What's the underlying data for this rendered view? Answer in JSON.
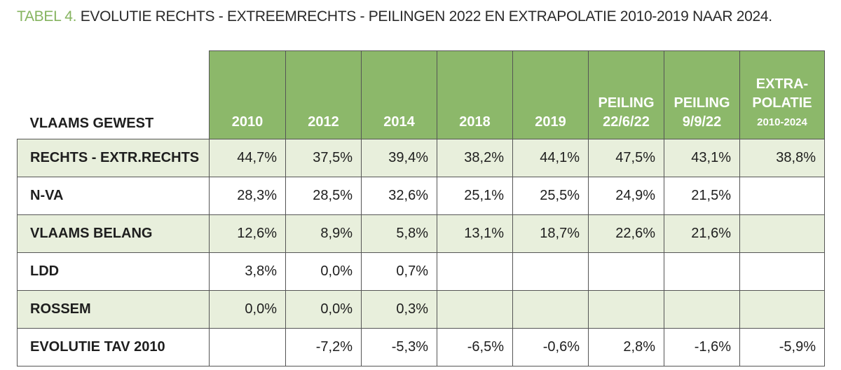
{
  "header": {
    "prefix": "TABEL 4.",
    "title": "EVOLUTIE RECHTS - EXTREEMRECHTS - PEILINGEN 2022 EN EXTRAPOLATIE 2010-2019 NAAR 2024."
  },
  "table": {
    "corner": "VLAAMS GEWEST",
    "columns": [
      [
        "2010"
      ],
      [
        "2012"
      ],
      [
        "2014"
      ],
      [
        "2018"
      ],
      [
        "2019"
      ],
      [
        "PEILING",
        "22/6/22"
      ],
      [
        "PEILING",
        "9/9/22"
      ],
      [
        "EXTRA-",
        "POLATIE",
        "2010-2024"
      ]
    ],
    "rows": [
      {
        "label": "RECHTS - EXTR.RECHTS",
        "values": [
          "44,7%",
          "37,5%",
          "39,4%",
          "38,2%",
          "44,1%",
          "47,5%",
          "43,1%",
          "38,8%"
        ]
      },
      {
        "label": "N-VA",
        "values": [
          "28,3%",
          "28,5%",
          "32,6%",
          "25,1%",
          "25,5%",
          "24,9%",
          "21,5%",
          null
        ]
      },
      {
        "label": "VLAAMS BELANG",
        "values": [
          "12,6%",
          "8,9%",
          "5,8%",
          "13,1%",
          "18,7%",
          "22,6%",
          "21,6%",
          null
        ]
      },
      {
        "label": "LDD",
        "values": [
          "3,8%",
          "0,0%",
          "0,7%",
          null,
          null,
          null,
          null,
          null
        ]
      },
      {
        "label": "ROSSEM",
        "values": [
          "0,0%",
          "0,0%",
          "0,3%",
          null,
          null,
          null,
          null,
          null
        ]
      },
      {
        "label": "EVOLUTIE TAV 2010",
        "values": [
          null,
          "-7,2%",
          "-5,3%",
          "-6,5%",
          "-0,6%",
          "2,8%",
          "-1,6%",
          "-5,9%"
        ]
      }
    ]
  }
}
